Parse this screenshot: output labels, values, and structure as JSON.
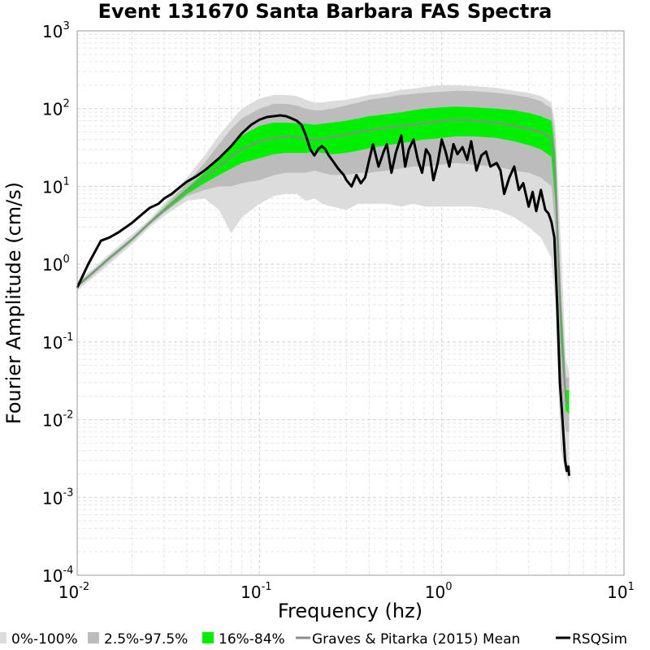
{
  "chart_data": {
    "type": "line",
    "title": "Event 131670 Santa Barbara FAS Spectra",
    "xlabel": "Frequency (hz)",
    "ylabel": "Fourier Amplitude (cm/s)",
    "x_scale": "log",
    "y_scale": "log",
    "xlim": [
      0.01,
      10
    ],
    "ylim": [
      0.0001,
      1000
    ],
    "grid": true,
    "legend_position": "bottom",
    "x_ticks": [
      {
        "base": "10",
        "exp": "-2"
      },
      {
        "base": "10",
        "exp": "-1"
      },
      {
        "base": "10",
        "exp": "0"
      },
      {
        "base": "10",
        "exp": "1"
      }
    ],
    "y_ticks": [
      {
        "base": "10",
        "exp": "-4"
      },
      {
        "base": "10",
        "exp": "-3"
      },
      {
        "base": "10",
        "exp": "-2"
      },
      {
        "base": "10",
        "exp": "-1"
      },
      {
        "base": "10",
        "exp": "0"
      },
      {
        "base": "10",
        "exp": "1"
      },
      {
        "base": "10",
        "exp": "2"
      },
      {
        "base": "10",
        "exp": "3"
      }
    ],
    "legend": [
      {
        "name": "0%-100%",
        "color": "#dcdcdc",
        "kind": "square"
      },
      {
        "name": "2.5%-97.5%",
        "color": "#bcbcbc",
        "kind": "square"
      },
      {
        "name": "16%-84%",
        "color": "#00ee00",
        "kind": "square"
      },
      {
        "name": "Graves & Pitarka (2015) Mean",
        "color": "#8c8c8c",
        "kind": "line"
      },
      {
        "name": "RSQSim",
        "color": "#000000",
        "kind": "line"
      }
    ],
    "x": [
      0.01,
      0.012,
      0.015,
      0.02,
      0.025,
      0.03,
      0.04,
      0.05,
      0.06,
      0.07,
      0.08,
      0.1,
      0.12,
      0.14,
      0.16,
      0.18,
      0.2,
      0.22,
      0.25,
      0.3,
      0.35,
      0.4,
      0.5,
      0.6,
      0.7,
      0.8,
      1.0,
      1.2,
      1.5,
      2.0,
      2.5,
      3.0,
      3.5,
      4.0,
      4.2,
      4.5,
      4.8,
      5.0
    ],
    "bands": [
      {
        "name": "0%-100%",
        "color": "#dcdcdc",
        "lower": [
          0.45,
          0.65,
          1.0,
          1.8,
          3.0,
          4.2,
          6.5,
          7.0,
          5.0,
          2.5,
          4.0,
          6.0,
          7.5,
          8.0,
          8.0,
          6.5,
          7.0,
          6.0,
          5.5,
          5.0,
          6.0,
          6.0,
          6.0,
          5.5,
          6.0,
          5.5,
          5.5,
          5.5,
          5.5,
          5.0,
          4.0,
          3.0,
          2.2,
          1.2,
          0.3,
          0.004,
          0.002,
          0.0015
        ],
        "upper": [
          0.6,
          0.85,
          1.35,
          2.4,
          3.8,
          6.0,
          13.0,
          25.0,
          45.0,
          70.0,
          100.0,
          135.0,
          150.0,
          150.0,
          145.0,
          130.0,
          120.0,
          120.0,
          125.0,
          130.0,
          140.0,
          150.0,
          160.0,
          175.0,
          180.0,
          190.0,
          200.0,
          200.0,
          195.0,
          185.0,
          170.0,
          160.0,
          145.0,
          120.0,
          60.0,
          2.0,
          0.06,
          0.04
        ]
      },
      {
        "name": "2.5%-97.5%",
        "color": "#bcbcbc",
        "lower": [
          0.5,
          0.7,
          1.1,
          1.95,
          3.2,
          4.6,
          7.5,
          9.0,
          10.0,
          10.0,
          11.0,
          12.0,
          14.0,
          15.0,
          15.0,
          15.0,
          16.0,
          15.0,
          14.0,
          14.0,
          15.0,
          15.0,
          16.0,
          17.0,
          18.0,
          18.0,
          19.0,
          20.0,
          19.0,
          18.0,
          16.0,
          15.0,
          13.0,
          10.0,
          3.0,
          0.02,
          0.007,
          0.007
        ],
        "upper": [
          0.55,
          0.8,
          1.25,
          2.2,
          3.6,
          5.5,
          11.0,
          20.0,
          35.0,
          55.0,
          75.0,
          100.0,
          115.0,
          115.0,
          110.0,
          100.0,
          95.0,
          95.0,
          100.0,
          110.0,
          120.0,
          130.0,
          140.0,
          150.0,
          155.0,
          160.0,
          165.0,
          170.0,
          168.0,
          160.0,
          150.0,
          140.0,
          125.0,
          100.0,
          40.0,
          0.5,
          0.035,
          0.035
        ]
      },
      {
        "name": "16%-84%",
        "color": "#00ee00",
        "lower": [
          0.5,
          0.73,
          1.15,
          2.0,
          3.3,
          4.7,
          8.0,
          11.0,
          14.0,
          17.0,
          20.0,
          23.0,
          26.0,
          27.0,
          27.0,
          27.0,
          28.0,
          27.0,
          26.0,
          27.0,
          29.0,
          31.0,
          34.0,
          36.0,
          38.0,
          40.0,
          42.0,
          44.0,
          44.0,
          42.0,
          38.0,
          34.0,
          30.0,
          24.0,
          6.0,
          0.1,
          0.013,
          0.012
        ],
        "upper": [
          0.55,
          0.78,
          1.25,
          2.15,
          3.55,
          5.2,
          9.5,
          15.0,
          22.0,
          32.0,
          45.0,
          60.0,
          66.0,
          66.0,
          65.0,
          64.0,
          62.0,
          64.0,
          66.0,
          70.0,
          75.0,
          80.0,
          85.0,
          90.0,
          95.0,
          100.0,
          104.0,
          106.0,
          104.0,
          100.0,
          95.0,
          88.0,
          80.0,
          70.0,
          25.0,
          0.4,
          0.024,
          0.024
        ]
      }
    ],
    "series": [
      {
        "name": "Graves & Pitarka (2015) Mean",
        "color": "#8c8c8c",
        "x": [
          0.01,
          0.012,
          0.015,
          0.02,
          0.025,
          0.03,
          0.04,
          0.05,
          0.06,
          0.07,
          0.08,
          0.1,
          0.12,
          0.14,
          0.16,
          0.18,
          0.2,
          0.22,
          0.25,
          0.3,
          0.35,
          0.4,
          0.5,
          0.6,
          0.7,
          0.8,
          1.0,
          1.2,
          1.5,
          2.0,
          2.5,
          3.0,
          3.5,
          4.0,
          4.2,
          4.5,
          4.8,
          5.0
        ],
        "y": [
          0.52,
          0.75,
          1.2,
          2.1,
          3.4,
          4.9,
          8.8,
          13.0,
          18.0,
          24.0,
          30.0,
          38.0,
          42.0,
          43.0,
          43.0,
          41.0,
          40.0,
          41.0,
          43.0,
          46.0,
          50.0,
          53.0,
          57.0,
          60.0,
          62.0,
          65.0,
          69.0,
          72.0,
          70.0,
          66.0,
          60.0,
          55.0,
          50.0,
          42.0,
          15.0,
          0.2,
          0.017,
          0.016
        ]
      },
      {
        "name": "RSQSim",
        "color": "#000000",
        "x": [
          0.01,
          0.0115,
          0.0135,
          0.015,
          0.017,
          0.02,
          0.023,
          0.025,
          0.028,
          0.03,
          0.033,
          0.036,
          0.04,
          0.045,
          0.05,
          0.06,
          0.07,
          0.08,
          0.09,
          0.1,
          0.11,
          0.12,
          0.13,
          0.14,
          0.15,
          0.16,
          0.17,
          0.18,
          0.19,
          0.2,
          0.21,
          0.22,
          0.23,
          0.24,
          0.25,
          0.27,
          0.29,
          0.3,
          0.32,
          0.34,
          0.36,
          0.38,
          0.4,
          0.42,
          0.45,
          0.48,
          0.5,
          0.53,
          0.56,
          0.6,
          0.63,
          0.66,
          0.7,
          0.74,
          0.78,
          0.82,
          0.86,
          0.9,
          0.95,
          1.0,
          1.05,
          1.1,
          1.16,
          1.22,
          1.3,
          1.38,
          1.45,
          1.55,
          1.65,
          1.75,
          1.85,
          2.0,
          2.1,
          2.2,
          2.35,
          2.5,
          2.65,
          2.8,
          3.0,
          3.15,
          3.3,
          3.5,
          3.7,
          3.85,
          4.0,
          4.15,
          4.3,
          4.45,
          4.6,
          4.75,
          4.85,
          4.95,
          5.0
        ],
        "y": [
          0.5,
          1.0,
          2.0,
          2.2,
          2.6,
          3.4,
          4.5,
          5.3,
          6.0,
          7.0,
          8.0,
          9.5,
          11.5,
          13.5,
          16.0,
          23.0,
          33.0,
          48.0,
          62.0,
          72.0,
          78.0,
          80.0,
          82.0,
          80.0,
          75.0,
          70.0,
          62.0,
          45.0,
          30.0,
          25.0,
          30.0,
          33.0,
          30.0,
          25.0,
          22.0,
          17.0,
          14.0,
          12.0,
          10.0,
          14.0,
          11.0,
          13.0,
          22.0,
          35.0,
          18.0,
          28.0,
          35.0,
          15.0,
          27.0,
          45.0,
          18.0,
          30.0,
          40.0,
          22.0,
          15.0,
          30.0,
          25.0,
          12.0,
          20.0,
          40.0,
          28.0,
          18.0,
          35.0,
          26.0,
          32.0,
          22.0,
          38.0,
          16.0,
          25.0,
          28.0,
          18.0,
          20.0,
          16.0,
          8.0,
          13.0,
          18.0,
          9.0,
          11.0,
          5.5,
          8.5,
          4.8,
          9.0,
          5.0,
          4.5,
          3.5,
          2.2,
          0.3,
          0.03,
          0.01,
          0.003,
          0.0022,
          0.0025,
          0.0019
        ]
      }
    ]
  }
}
